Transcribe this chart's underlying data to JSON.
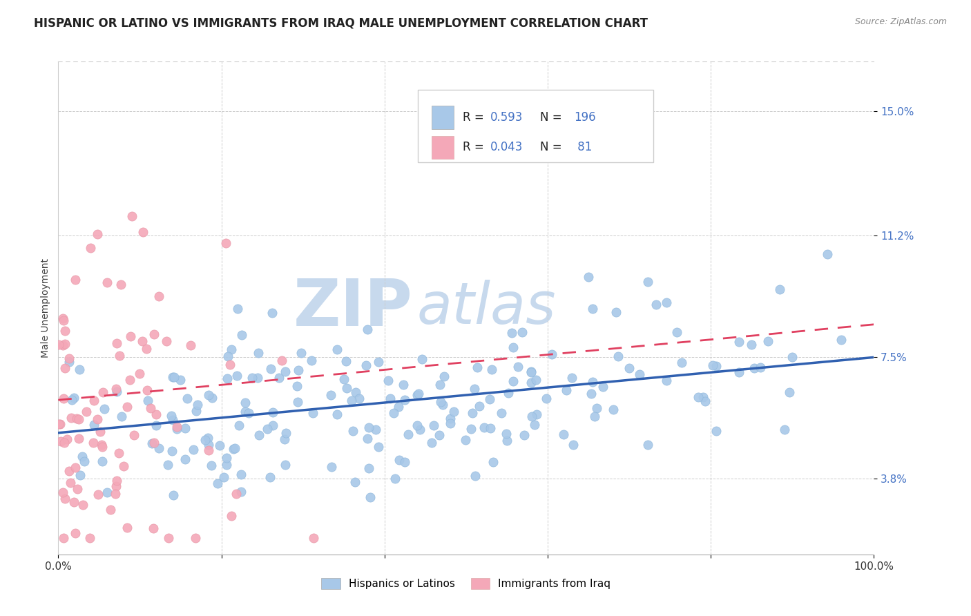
{
  "title": "HISPANIC OR LATINO VS IMMIGRANTS FROM IRAQ MALE UNEMPLOYMENT CORRELATION CHART",
  "source_text": "Source: ZipAtlas.com",
  "ylabel": "Male Unemployment",
  "xlim": [
    0,
    100
  ],
  "ylim": [
    1.5,
    16.5
  ],
  "yticks": [
    3.8,
    7.5,
    11.2,
    15.0
  ],
  "xtick_labels": [
    "0.0%",
    "100.0%"
  ],
  "ytick_labels": [
    "3.8%",
    "7.5%",
    "11.2%",
    "15.0%"
  ],
  "blue_R": 0.593,
  "blue_N": 196,
  "pink_R": 0.043,
  "pink_N": 81,
  "blue_color": "#a8c8e8",
  "blue_edge_color": "#90b8dc",
  "blue_line_color": "#3060b0",
  "pink_color": "#f4a8b8",
  "pink_edge_color": "#e898a8",
  "pink_line_color": "#e04060",
  "background_color": "#ffffff",
  "watermark": "ZIPAtlas",
  "watermark_color_r": 0.78,
  "watermark_color_g": 0.85,
  "watermark_color_b": 0.93,
  "legend_label_blue": "Hispanics or Latinos",
  "legend_label_pink": "Immigrants from Iraq",
  "title_fontsize": 12,
  "axis_label_fontsize": 10,
  "tick_fontsize": 11,
  "blue_seed": 42,
  "pink_seed": 123,
  "blue_trend_start_x": 0,
  "blue_trend_end_x": 100,
  "blue_trend_start_y": 5.2,
  "blue_trend_end_y": 7.5,
  "pink_trend_start_x": 0,
  "pink_trend_end_x": 100,
  "pink_trend_start_y": 6.2,
  "pink_trend_end_y": 8.5
}
